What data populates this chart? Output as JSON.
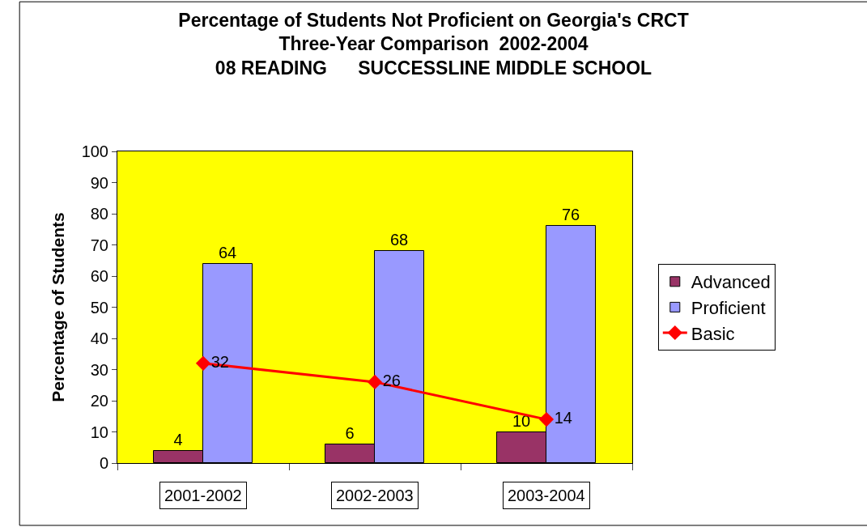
{
  "chart_data": {
    "type": "bar",
    "title": "Percentage of Students Not Proficient on Georgia's CRCT\nThree-Year Comparison  2002-2004\n08 READING      SUCCESSLINE MIDDLE SCHOOL",
    "ylabel": "Percentage of Students",
    "categories": [
      "2001-2002",
      "2002-2003",
      "2003-2004"
    ],
    "series": [
      {
        "name": "Advanced",
        "color": "#993366",
        "values": [
          4,
          6,
          10
        ]
      },
      {
        "name": "Proficient",
        "color": "#9999ff",
        "values": [
          64,
          68,
          76
        ]
      },
      {
        "name": "Basic",
        "color": "#ff0000",
        "values": [
          32,
          26,
          14
        ],
        "type": "line",
        "marker": "diamond"
      }
    ],
    "ylim": [
      0,
      100
    ],
    "yticks": [
      0,
      10,
      20,
      30,
      40,
      50,
      60,
      70,
      80,
      90,
      100
    ],
    "data_labels": true,
    "grid": false,
    "legend": "right"
  }
}
